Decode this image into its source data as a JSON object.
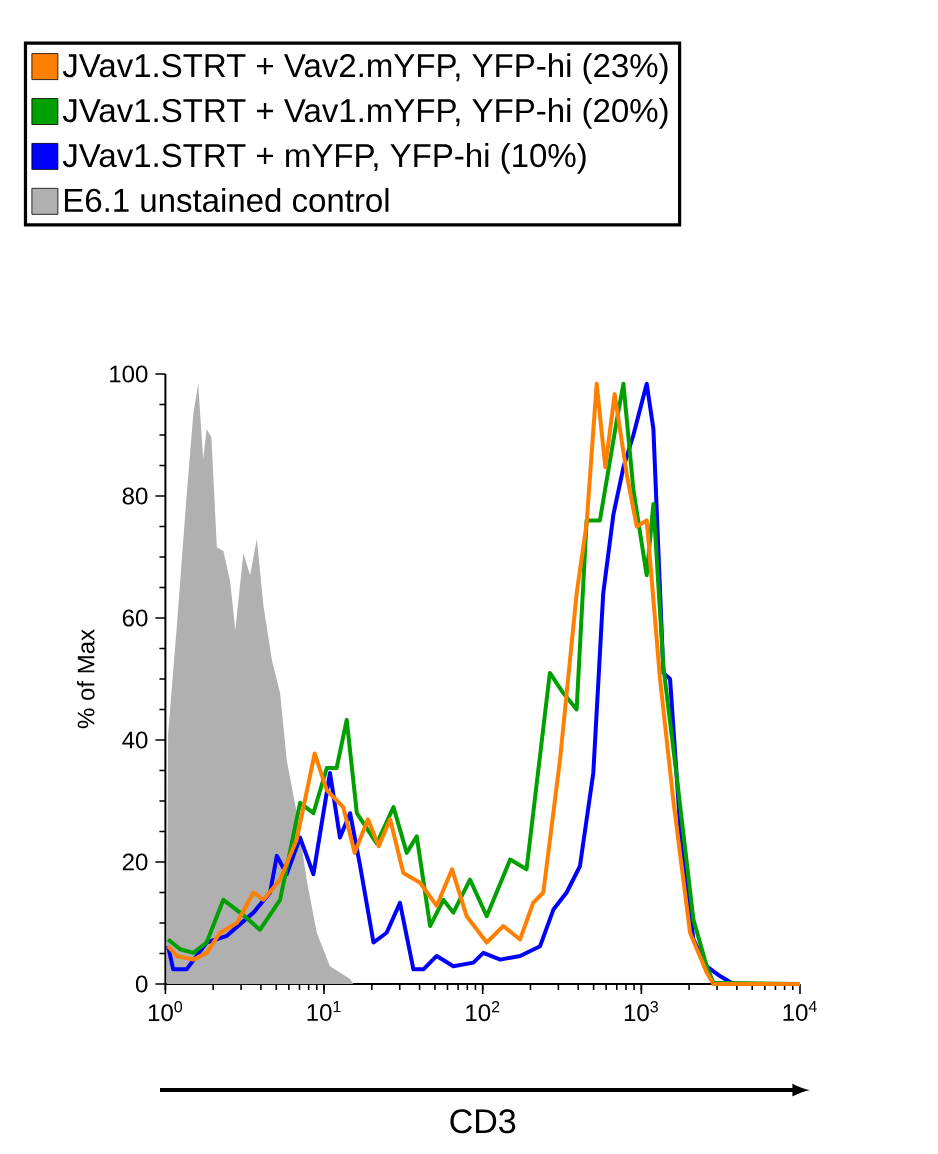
{
  "chart_data": {
    "type": "line",
    "xlabel": "CD3",
    "ylabel": "% of Max",
    "log": "x",
    "xlim": [
      1,
      10000
    ],
    "ylim": [
      0,
      100
    ],
    "xticks": [
      {
        "value": 1,
        "label": "10$^{0}$"
      },
      {
        "value": 10,
        "label": "10$^{1}$"
      },
      {
        "value": 100,
        "label": "10$^{2}$"
      },
      {
        "value": 1000,
        "label": "10$^{3}$"
      },
      {
        "value": 10000,
        "label": "10$^{4}$"
      }
    ],
    "yticks": [
      0,
      20,
      40,
      60,
      80,
      100
    ],
    "legend": "top",
    "grid": false,
    "marker": "none",
    "line_style": "solid",
    "series": [
      {
        "name": "JVav1.STRT + Vav2.mYFP, YFP-hi (23%)",
        "color": "#ff8000",
        "x": [
          1.04,
          1.18,
          1.5,
          1.82,
          2.21,
          2.82,
          3.59,
          4.15,
          5.28,
          6.73,
          8.73,
          10.4,
          13.2,
          15.6,
          18.9,
          22.1,
          26.1,
          31.6,
          40.3,
          51.3,
          64.1,
          79.3,
          106,
          135,
          172,
          208,
          241,
          307,
          391,
          452,
          523,
          593,
          679,
          809,
          935,
          1081,
          1312,
          1592,
          2028,
          2582,
          2844,
          10000
        ],
        "values": [
          6.2,
          4.6,
          4,
          5.1,
          8.4,
          10,
          15,
          13.8,
          17.1,
          23.7,
          37.8,
          31.8,
          29,
          21.5,
          27,
          22.6,
          27,
          18.2,
          16.6,
          12.8,
          18.8,
          11.1,
          6.8,
          9.5,
          7.3,
          13.3,
          15,
          36.7,
          64,
          75.5,
          98.4,
          84.7,
          96.7,
          83.6,
          75,
          76,
          50,
          30,
          8.4,
          1.9,
          0,
          0
        ]
      },
      {
        "name": "JVav1.STRT + Vav1.mYFP, YFP-hi (20%)",
        "color": "#00a000",
        "x": [
          1.04,
          1.24,
          1.5,
          1.82,
          2.32,
          2.96,
          3.95,
          5.28,
          7.06,
          8.57,
          10.4,
          12.0,
          13.9,
          16.1,
          21.5,
          27.4,
          33.2,
          38.4,
          46.6,
          56.5,
          65.3,
          83.2,
          106,
          149,
          189,
          265,
          322,
          391,
          452,
          548,
          700,
          771,
          891,
          1081,
          1191,
          1377,
          1671,
          2128,
          2582,
          2844,
          10000
        ],
        "values": [
          7.3,
          5.7,
          5.1,
          6.8,
          13.8,
          11.7,
          8.9,
          13.8,
          29.7,
          28,
          35.4,
          35.4,
          43.3,
          28,
          23,
          29,
          21.5,
          24.2,
          9.5,
          13.8,
          11.7,
          17.1,
          11.1,
          20.4,
          18.8,
          51,
          47.7,
          45,
          76,
          76,
          92.4,
          98.4,
          81,
          67,
          78.7,
          52,
          34,
          10.6,
          2.9,
          0.2,
          0
        ]
      },
      {
        "name": "JVav1.STRT + mYFP, YFP-hi (10%)",
        "color": "#0000ff",
        "x": [
          1.04,
          1.12,
          1.36,
          1.82,
          2.44,
          3.59,
          4.57,
          5.04,
          5.82,
          7.06,
          8.57,
          10.9,
          12.6,
          14.6,
          16.9,
          20.5,
          24.8,
          30.1,
          36.6,
          42.3,
          51.3,
          65.3,
          87.3,
          101,
          129,
          172,
          230,
          279,
          338,
          410,
          498,
          575,
          667,
          771,
          891,
          1081,
          1191,
          1377,
          1517,
          1754,
          2128,
          2582,
          3133,
          3802,
          10000
        ],
        "values": [
          6.2,
          2.4,
          2.4,
          6.8,
          7.9,
          11.7,
          15,
          21,
          18,
          24,
          18,
          34.6,
          24,
          28,
          19.3,
          6.8,
          8.4,
          13.3,
          2.4,
          2.4,
          4.6,
          2.9,
          3.5,
          5.1,
          4,
          4.6,
          6.2,
          12.2,
          15,
          19.3,
          34.6,
          64,
          77,
          84.7,
          90,
          98.4,
          91,
          51,
          50,
          26,
          7.3,
          2.9,
          1.3,
          0,
          0
        ]
      },
      {
        "name": "E6.1 unstained control",
        "type": "area",
        "color": "#b0b0b0",
        "x": [
          1.02,
          1.04,
          1.18,
          1.36,
          1.5,
          1.61,
          1.73,
          1.82,
          1.95,
          2.11,
          2.32,
          2.56,
          2.76,
          3.1,
          3.42,
          3.77,
          4.15,
          4.7,
          5.28,
          5.82,
          6.73,
          7.78,
          9.0,
          10.9,
          14.6,
          15.3
        ],
        "values": [
          0,
          41,
          58.6,
          80,
          93.5,
          98.4,
          86,
          91,
          89.6,
          71.6,
          71,
          66,
          58,
          70.6,
          67,
          73,
          62,
          53,
          47.7,
          36.7,
          28,
          17,
          8.4,
          2.9,
          0.8,
          0
        ]
      }
    ]
  }
}
